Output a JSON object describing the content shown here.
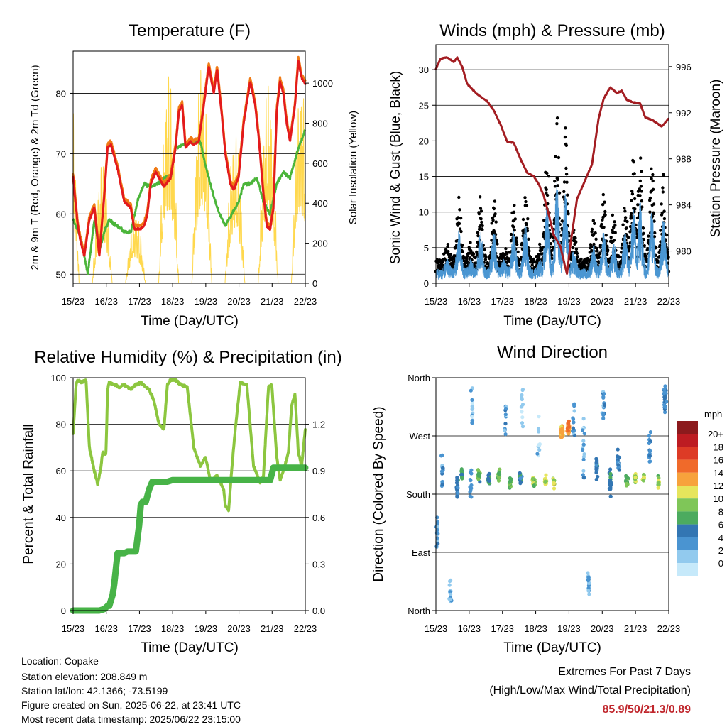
{
  "colors": {
    "temp2m": "#e31a1c",
    "temp9m": "#f07b16",
    "dewpoint": "#4bb53a",
    "solar": "#ffd84d",
    "gust": "#000000",
    "wind": "#4a96d2",
    "pressure": "#a31d22",
    "rh": "#8cc63f",
    "precip": "#47b347",
    "extremes": "#c0272d"
  },
  "x_ticks": [
    "15/23",
    "16/23",
    "17/23",
    "18/23",
    "19/23",
    "20/23",
    "21/23",
    "22/23"
  ],
  "xlabel": "Time (Day/UTC)",
  "chart_data": [
    {
      "type": "line",
      "title": "Temperature (F)",
      "xlabel": "Time (Day/UTC)",
      "ylabel": "2m & 9m T (Red, Orange) & 2m Td (Green)",
      "y2label": "Solar Insolation (Yellow)",
      "ylim": [
        48.5,
        87
      ],
      "y_ticks": [
        "50",
        "60",
        "70",
        "80"
      ],
      "y2lim": [
        0,
        1160
      ],
      "y2_ticks": [
        "0",
        "200",
        "400",
        "600",
        "800",
        "1000"
      ],
      "series": [
        {
          "x": [
            15.96,
            16.1,
            16.2,
            16.3,
            16.45,
            16.6,
            16.75,
            16.9,
            17.0,
            17.1,
            17.3,
            17.5,
            17.7,
            17.8,
            18.0,
            18.1,
            18.2,
            18.3,
            18.45,
            18.55,
            18.7,
            18.9,
            19.05,
            19.15,
            19.25,
            19.35,
            19.5,
            19.6,
            19.75,
            19.9,
            20.05,
            20.2,
            20.3,
            20.45,
            20.55,
            20.7,
            20.8,
            20.95,
            21.1,
            21.3,
            21.45,
            21.55,
            21.7,
            21.8,
            21.9,
            22.0,
            22.1,
            22.2,
            22.3,
            22.4,
            22.5,
            22.65,
            22.75,
            22.85,
            22.96
          ],
          "values": [
            66,
            58,
            55,
            53,
            59,
            61,
            53,
            63,
            71,
            71.5,
            67.5,
            62,
            61,
            57.5,
            57.5,
            58,
            60,
            65,
            67,
            66,
            64.5,
            66,
            71,
            77,
            78,
            71,
            72,
            71.5,
            72,
            78,
            84.5,
            80,
            84,
            76,
            70,
            65,
            64,
            66,
            75,
            82,
            78,
            73,
            63,
            58,
            57.5,
            61,
            77,
            82,
            80,
            75,
            72,
            78,
            85.5,
            82.5,
            81.5
          ]
        }
      ]
    },
    {
      "type": "line",
      "title": "Winds (mph) & Pressure (mb)",
      "xlabel": "Time (Day/UTC)",
      "ylabel": "Sonic Wind & Gust (Blue, Black)",
      "y2label": "Station Pressure (Maroon)",
      "ylim": [
        0,
        33.5
      ],
      "y_ticks": [
        "0",
        "5",
        "10",
        "15",
        "20",
        "25",
        "30"
      ],
      "y2lim": [
        977.2,
        997.9
      ],
      "y2_ticks": [
        "980",
        "984",
        "988",
        "992",
        "996"
      ],
      "pressure": {
        "x": [
          15.96,
          16.1,
          16.3,
          16.5,
          16.6,
          16.75,
          16.9,
          17.2,
          17.5,
          17.7,
          17.9,
          18.1,
          18.3,
          18.5,
          18.7,
          18.9,
          19.05,
          19.2,
          19.35,
          19.5,
          19.7,
          19.8,
          19.9,
          20.0,
          20.2,
          20.5,
          20.65,
          20.75,
          20.85,
          21.0,
          21.2,
          21.4,
          21.55,
          21.7,
          21.9,
          22.1,
          22.25,
          22.5,
          22.75,
          22.96
        ],
        "values": [
          995.8,
          996.7,
          996.8,
          996.4,
          996.8,
          996.0,
          994.5,
          993.6,
          993.0,
          992.2,
          991.0,
          989.5,
          989.4,
          988.0,
          986.8,
          986.5,
          985.8,
          984.8,
          983.2,
          981.4,
          980.4,
          979.2,
          978.0,
          980.5,
          984.5,
          986.5,
          987.5,
          989.5,
          991.5,
          993.2,
          994.2,
          993.7,
          993.9,
          993.1,
          992.9,
          992.8,
          991.6,
          991.3,
          990.8,
          991.5
        ]
      },
      "gust_centers": [
        [
          16.3,
          5
        ],
        [
          16.65,
          11
        ],
        [
          17.0,
          5
        ],
        [
          17.3,
          11
        ],
        [
          17.7,
          11
        ],
        [
          18.0,
          5
        ],
        [
          18.3,
          11
        ],
        [
          18.65,
          12
        ],
        [
          19.1,
          5
        ],
        [
          19.3,
          17
        ],
        [
          19.6,
          21
        ],
        [
          19.85,
          20
        ],
        [
          20.1,
          7
        ],
        [
          20.4,
          3
        ],
        [
          20.7,
          8
        ],
        [
          21.0,
          11
        ],
        [
          21.3,
          9
        ],
        [
          21.65,
          11
        ],
        [
          21.9,
          16
        ],
        [
          22.1,
          17
        ],
        [
          22.45,
          15
        ],
        [
          22.8,
          14
        ]
      ]
    },
    {
      "type": "line",
      "title": "Relative Humidity (%) & Precipitation (in)",
      "xlabel": "Time (Day/UTC)",
      "ylabel": "Percent & Total Rainfall",
      "ylim": [
        0,
        100
      ],
      "y_ticks": [
        "0",
        "20",
        "40",
        "60",
        "80",
        "100"
      ],
      "y2lim": [
        0,
        1.5
      ],
      "y2_ticks": [
        "0.0",
        "0.3",
        "0.6",
        "0.9",
        "1.2"
      ],
      "series": [
        {
          "name": "rh",
          "x": [
            15.96,
            16.05,
            16.1,
            16.2,
            16.35,
            16.45,
            16.6,
            16.7,
            16.8,
            16.85,
            16.95,
            17.0,
            17.05,
            17.2,
            17.35,
            17.5,
            17.7,
            17.85,
            18.0,
            18.15,
            18.25,
            18.4,
            18.55,
            18.7,
            18.8,
            18.9,
            19.05,
            19.2,
            19.4,
            19.6,
            19.8,
            19.95,
            20.1,
            20.3,
            20.5,
            20.55,
            20.65,
            20.75,
            20.85,
            21.0,
            21.2,
            21.4,
            21.6,
            21.7,
            21.85,
            21.95,
            22.1,
            22.2,
            22.3,
            22.45,
            22.55,
            22.65,
            22.75,
            22.85,
            22.96
          ],
          "values": [
            76,
            97,
            99,
            98,
            99,
            70,
            60,
            54,
            62,
            68,
            67,
            95,
            98,
            97,
            96,
            97,
            95,
            97,
            98,
            96,
            95,
            90,
            80,
            78,
            97,
            99,
            99,
            97,
            96,
            70,
            62,
            66,
            56,
            58,
            52,
            45,
            43,
            62,
            78,
            98,
            97,
            62,
            55,
            58,
            96,
            97,
            66,
            56,
            60,
            68,
            88,
            93,
            68,
            62,
            78
          ]
        },
        {
          "name": "precip",
          "x": [
            15.96,
            16.5,
            16.75,
            16.9,
            17.0,
            17.05,
            17.15,
            17.2,
            17.3,
            17.5,
            17.6,
            17.7,
            17.85,
            17.95,
            18.0,
            18.05,
            18.15,
            18.25,
            18.35,
            18.8,
            18.95,
            19.1,
            19.5,
            20.0,
            20.5,
            21.0,
            21.4,
            21.7,
            21.9,
            22.0,
            22.5,
            22.96
          ],
          "values": [
            0.0,
            0.0,
            0.0,
            0.01,
            0.03,
            0.03,
            0.1,
            0.17,
            0.37,
            0.37,
            0.38,
            0.38,
            0.38,
            0.55,
            0.68,
            0.7,
            0.7,
            0.78,
            0.83,
            0.83,
            0.84,
            0.84,
            0.84,
            0.84,
            0.84,
            0.84,
            0.84,
            0.84,
            0.84,
            0.92,
            0.92,
            0.92
          ]
        }
      ]
    },
    {
      "type": "scatter",
      "title": "Wind Direction",
      "xlabel": "Time (Day/UTC)",
      "ylabel": "Direction (Colored By Speed)",
      "y_ticks": [
        "North",
        "East",
        "South",
        "West",
        "North"
      ],
      "colorbar_title": "mph",
      "colorbar_labels": [
        "0",
        "2",
        "4",
        "6",
        "8",
        "10",
        "12",
        "14",
        "16",
        "18",
        "20+"
      ],
      "colorbar_colors": [
        "#c6e9fa",
        "#92caee",
        "#4a94d1",
        "#3376b3",
        "#4cab5f",
        "#7fc658",
        "#e6e55c",
        "#f7a23c",
        "#f06a2a",
        "#dd3b26",
        "#bd1c22",
        "#8c1a1d"
      ],
      "clusters": [
        [
          16.0,
          120,
          40,
          4,
          18,
          8
        ],
        [
          16.15,
          215,
          35,
          5,
          14,
          6
        ],
        [
          16.4,
          30,
          25,
          3,
          16,
          3
        ],
        [
          16.6,
          190,
          30,
          7,
          18,
          5
        ],
        [
          16.75,
          210,
          15,
          9,
          16,
          9
        ],
        [
          17.0,
          200,
          40,
          5,
          14,
          6
        ],
        [
          17.05,
          310,
          50,
          4,
          14,
          5
        ],
        [
          17.25,
          210,
          15,
          10,
          22,
          9
        ],
        [
          17.55,
          200,
          14,
          8,
          18,
          8
        ],
        [
          17.85,
          210,
          12,
          10,
          18,
          10
        ],
        [
          18.05,
          300,
          60,
          4,
          12,
          4
        ],
        [
          18.2,
          200,
          12,
          10,
          18,
          9
        ],
        [
          18.5,
          205,
          14,
          8,
          18,
          8
        ],
        [
          18.55,
          320,
          50,
          3,
          12,
          3
        ],
        [
          18.9,
          200,
          12,
          11,
          24,
          13
        ],
        [
          19.05,
          260,
          60,
          3,
          10,
          3
        ],
        [
          19.25,
          200,
          10,
          12,
          22,
          13
        ],
        [
          19.5,
          198,
          10,
          12,
          20,
          12
        ],
        [
          19.75,
          275,
          14,
          15,
          40,
          16
        ],
        [
          19.95,
          280,
          16,
          16,
          40,
          18
        ],
        [
          20.1,
          300,
          40,
          5,
          14,
          7
        ],
        [
          20.4,
          250,
          80,
          4,
          18,
          5
        ],
        [
          20.55,
          40,
          30,
          4,
          22,
          3
        ],
        [
          20.8,
          220,
          30,
          7,
          22,
          8
        ],
        [
          21.0,
          320,
          50,
          5,
          14,
          6
        ],
        [
          21.2,
          200,
          30,
          7,
          22,
          7
        ],
        [
          21.45,
          230,
          30,
          6,
          18,
          5
        ],
        [
          21.7,
          200,
          14,
          10,
          16,
          9
        ],
        [
          21.95,
          205,
          12,
          12,
          16,
          12
        ],
        [
          22.2,
          205,
          10,
          12,
          16,
          12
        ],
        [
          22.4,
          250,
          50,
          6,
          14,
          6
        ],
        [
          22.65,
          200,
          15,
          11,
          12,
          12
        ],
        [
          22.85,
          330,
          25,
          6,
          30,
          8
        ]
      ]
    }
  ],
  "info": {
    "location": "Location: Copake",
    "elevation": "Station elevation: 208.849 m",
    "latlon": "Station lat/lon: 42.1366; -73.5199",
    "created": "Figure created on Sun, 2025-06-22, at 23:41 UTC",
    "recent": "Most recent data timestamp: 2025/06/22 23:15:00"
  },
  "extremes": {
    "title": "Extremes For Past 7 Days",
    "subtitle": "(High/Low/Max Wind/Total Precipitation)",
    "values": "85.9/50/21.3/0.89"
  }
}
